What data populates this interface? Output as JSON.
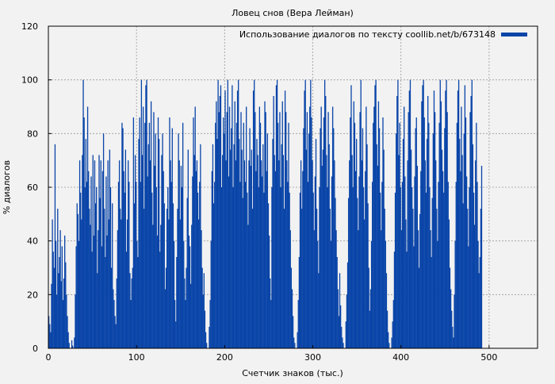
{
  "chart_data": {
    "type": "bar",
    "title": "Ловец снов (Вера Лейман)",
    "xlabel": "Счетчик знаков (тыс.)",
    "ylabel": "% диалогов",
    "xlim": [
      0,
      555
    ],
    "ylim": [
      0,
      120
    ],
    "xticks": [
      "0",
      "100",
      "200",
      "300",
      "400",
      "500"
    ],
    "yticks": [
      "0",
      "20",
      "40",
      "60",
      "80",
      "100",
      "120"
    ],
    "grid": true,
    "legend_position": "top-right",
    "bar_color": "#0a45a8",
    "series": [
      {
        "name": "Использование диалогов по тексту coollib.net/b/673148",
        "bin_width_thousand_chars": 1,
        "values": [
          12,
          9,
          6,
          24,
          48,
          36,
          30,
          76,
          40,
          20,
          52,
          28,
          34,
          44,
          25,
          38,
          18,
          26,
          42,
          32,
          20,
          12,
          6,
          2,
          0,
          0,
          3,
          1,
          0,
          4,
          20,
          38,
          54,
          50,
          40,
          70,
          58,
          48,
          72,
          100,
          86,
          60,
          78,
          62,
          90,
          66,
          52,
          46,
          64,
          36,
          72,
          42,
          70,
          54,
          60,
          28,
          44,
          72,
          56,
          70,
          38,
          66,
          80,
          52,
          34,
          64,
          42,
          70,
          48,
          74,
          60,
          30,
          54,
          22,
          18,
          12,
          9,
          26,
          44,
          62,
          70,
          52,
          48,
          84,
          82,
          66,
          58,
          74,
          36,
          48,
          70,
          62,
          28,
          18,
          26,
          30,
          86,
          54,
          72,
          62,
          40,
          34,
          78,
          86,
          62,
          100,
          72,
          90,
          52,
          84,
          98,
          100,
          64,
          76,
          84,
          70,
          92,
          58,
          46,
          88,
          68,
          80,
          60,
          42,
          86,
          78,
          36,
          46,
          72,
          80,
          66,
          54,
          22,
          30,
          52,
          60,
          48,
          86,
          70,
          62,
          82,
          54,
          40,
          18,
          10,
          34,
          52,
          80,
          70,
          48,
          68,
          60,
          84,
          40,
          26,
          18,
          30,
          56,
          74,
          42,
          38,
          24,
          46,
          64,
          86,
          72,
          90,
          66,
          70,
          58,
          48,
          62,
          76,
          44,
          30,
          20,
          28,
          14,
          6,
          2,
          0,
          0,
          8,
          18,
          40,
          66,
          76,
          54,
          62,
          84,
          92,
          78,
          100,
          88,
          94,
          98,
          60,
          72,
          86,
          80,
          96,
          70,
          88,
          100,
          64,
          90,
          74,
          82,
          98,
          60,
          76,
          92,
          70,
          84,
          96,
          100,
          78,
          62,
          88,
          74,
          56,
          84,
          70,
          62,
          90,
          58,
          46,
          70,
          82,
          68,
          74,
          52,
          96,
          100,
          88,
          66,
          78,
          72,
          60,
          90,
          84,
          70,
          64,
          76,
          58,
          92,
          88,
          66,
          80,
          54,
          42,
          26,
          18,
          60,
          78,
          94,
          72,
          66,
          98,
          100,
          84,
          70,
          88,
          60,
          76,
          92,
          72,
          52,
          96,
          88,
          70,
          62,
          84,
          58,
          44,
          30,
          22,
          12,
          4,
          2,
          0,
          0,
          6,
          18,
          34,
          58,
          70,
          52,
          66,
          82,
          96,
          100,
          74,
          88,
          62,
          80,
          90,
          100,
          86,
          70,
          58,
          44,
          64,
          78,
          52,
          40,
          28,
          60,
          82,
          90,
          68,
          74,
          86,
          100,
          94,
          72,
          60,
          88,
          76,
          52,
          40,
          64,
          90,
          82,
          70,
          56,
          44,
          34,
          22,
          12,
          28,
          16,
          8,
          4,
          2,
          0,
          0,
          10,
          20,
          32,
          56,
          70,
          86,
          98,
          72,
          60,
          92,
          84,
          66,
          78,
          56,
          44,
          64,
          88,
          100,
          70,
          82,
          60,
          48,
          66,
          90,
          76,
          54,
          30,
          14,
          22,
          40,
          62,
          84,
          90,
          98,
          100,
          76,
          68,
          92,
          82,
          58,
          44,
          62,
          86,
          74,
          52,
          40,
          28,
          14,
          6,
          2,
          0,
          0,
          4,
          10,
          18,
          36,
          58,
          80,
          94,
          100,
          72,
          84,
          60,
          44,
          62,
          78,
          90,
          64,
          48,
          36,
          70,
          88,
          96,
          100,
          74,
          60,
          52,
          38,
          64,
          82,
          86,
          68,
          44,
          30,
          50,
          66,
          92,
          98,
          100,
          86,
          70,
          58,
          78,
          94,
          84,
          60,
          44,
          34,
          56,
          80,
          96,
          88,
          70,
          52,
          40,
          62,
          84,
          100,
          92,
          74,
          66,
          58,
          82,
          96,
          100,
          88,
          62,
          48,
          30,
          22,
          14,
          8,
          4,
          20,
          40,
          62,
          84,
          96,
          100,
          78,
          66,
          90,
          72,
          54,
          80,
          98,
          86,
          64,
          52,
          38,
          60,
          88,
          94,
          100,
          76,
          58,
          46,
          70,
          84,
          62,
          40,
          28,
          34,
          52,
          68
        ]
      }
    ]
  }
}
